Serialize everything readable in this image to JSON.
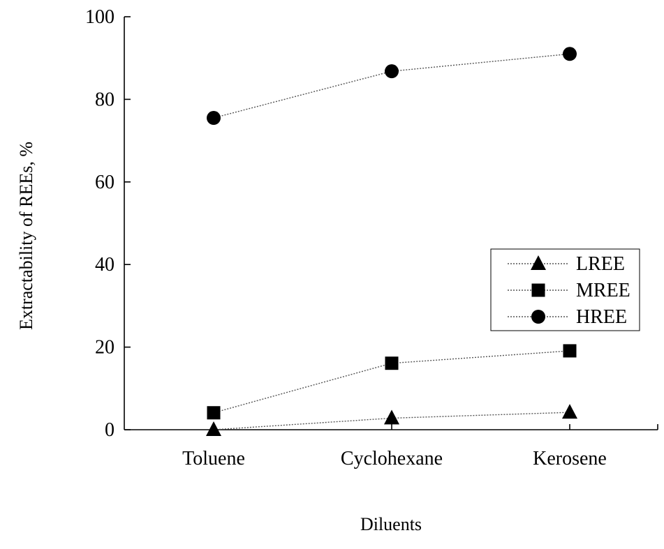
{
  "chart_data": {
    "type": "line",
    "title": "",
    "xlabel": "Diluents",
    "ylabel": "Extractability of REEs, %",
    "categories": [
      "Toluene",
      "Cyclohexane",
      "Kerosene"
    ],
    "ylim": [
      0,
      100
    ],
    "yticks": [
      0,
      20,
      40,
      60,
      80,
      100
    ],
    "grid": false,
    "legend_position": "center-right",
    "series": [
      {
        "name": "LREE",
        "marker": "triangle",
        "values": [
          0,
          2.8,
          4.2
        ]
      },
      {
        "name": "MREE",
        "marker": "square",
        "values": [
          4.1,
          16.1,
          19.1
        ]
      },
      {
        "name": "HREE",
        "marker": "circle",
        "values": [
          75.5,
          86.8,
          91.0
        ]
      }
    ],
    "colors": {
      "marker": "#000000",
      "line": "#555555"
    }
  }
}
